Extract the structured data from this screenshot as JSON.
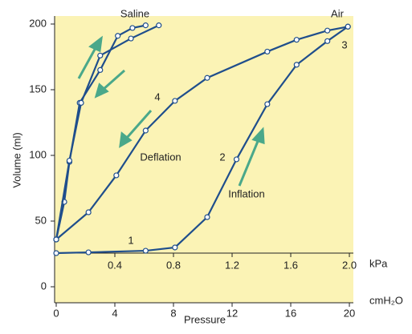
{
  "chart_data": {
    "type": "line",
    "x_label": "Pressure",
    "y_label": "Volume (ml)",
    "x_unit": "cmH₂O",
    "x2_unit": "kPa",
    "xlim": [
      0,
      20.3
    ],
    "ylim": [
      -12,
      205
    ],
    "xticks": [
      0,
      4,
      8,
      12,
      16,
      20
    ],
    "yticks": [
      0,
      50,
      100,
      150,
      200
    ],
    "x2lim": [
      0,
      2.03
    ],
    "x2ticks": [
      0.4,
      0.8,
      1.2,
      1.6,
      {
        "value": 2,
        "label": "2.0"
      }
    ],
    "series": [
      {
        "color": "#1f4e8c",
        "x": [
          0,
          2.2,
          6.1,
          8.1,
          10.3,
          12.3,
          14.4,
          16.4,
          18.5,
          19.9
        ],
        "values": [
          25.6,
          26.2,
          27.4,
          29.9,
          53,
          97,
          139,
          169,
          187,
          198
        ]
      },
      {
        "color": "#1f4e8c",
        "x": [
          0,
          2.2,
          4.1,
          6.1,
          8.1,
          10.3,
          14.4,
          16.4,
          18.5,
          19.9
        ],
        "values": [
          36,
          56.7,
          84.8,
          118.9,
          141.5,
          159,
          179,
          188,
          195,
          198
        ]
      },
      {
        "color": "#1f4e8c",
        "x": [
          0,
          0.55,
          0.9,
          1.6,
          3.0,
          4.2,
          5.2,
          6.1
        ],
        "values": [
          36,
          64.6,
          95,
          140,
          165,
          191,
          197,
          199
        ]
      },
      {
        "color": "#1f4e8c",
        "x": [
          0,
          0.9,
          1.7,
          3.0,
          5.1,
          7.0
        ],
        "values": [
          36,
          96,
          140,
          176,
          189,
          199
        ]
      }
    ],
    "annotations": [
      "Saline",
      "Air",
      "Deflation",
      "Inflation",
      "1",
      "2",
      "3",
      "4"
    ]
  }
}
